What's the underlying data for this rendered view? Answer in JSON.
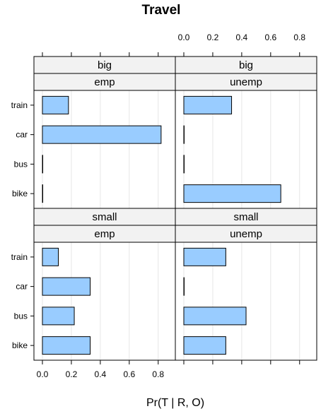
{
  "chart_data": {
    "type": "bar",
    "orientation": "horizontal",
    "title": "Travel",
    "xlabel": "Pr(T | R, O)",
    "ylabel": "",
    "xlim": [
      0,
      0.9
    ],
    "xticks": [
      "0.0",
      "0.2",
      "0.4",
      "0.6",
      "0.8"
    ],
    "categories": [
      "train",
      "car",
      "bus",
      "bike"
    ],
    "grid": true,
    "bar_color": "#99CCFF",
    "panels": [
      {
        "strip_top": "big",
        "strip_bottom": "emp",
        "values": [
          0.18,
          0.82,
          0.0,
          0.0
        ]
      },
      {
        "strip_top": "big",
        "strip_bottom": "unemp",
        "values": [
          0.33,
          0.0,
          0.0,
          0.67
        ]
      },
      {
        "strip_top": "small",
        "strip_bottom": "emp",
        "values": [
          0.11,
          0.33,
          0.22,
          0.33
        ]
      },
      {
        "strip_top": "small",
        "strip_bottom": "unemp",
        "values": [
          0.29,
          0.0,
          0.43,
          0.29
        ]
      }
    ]
  }
}
